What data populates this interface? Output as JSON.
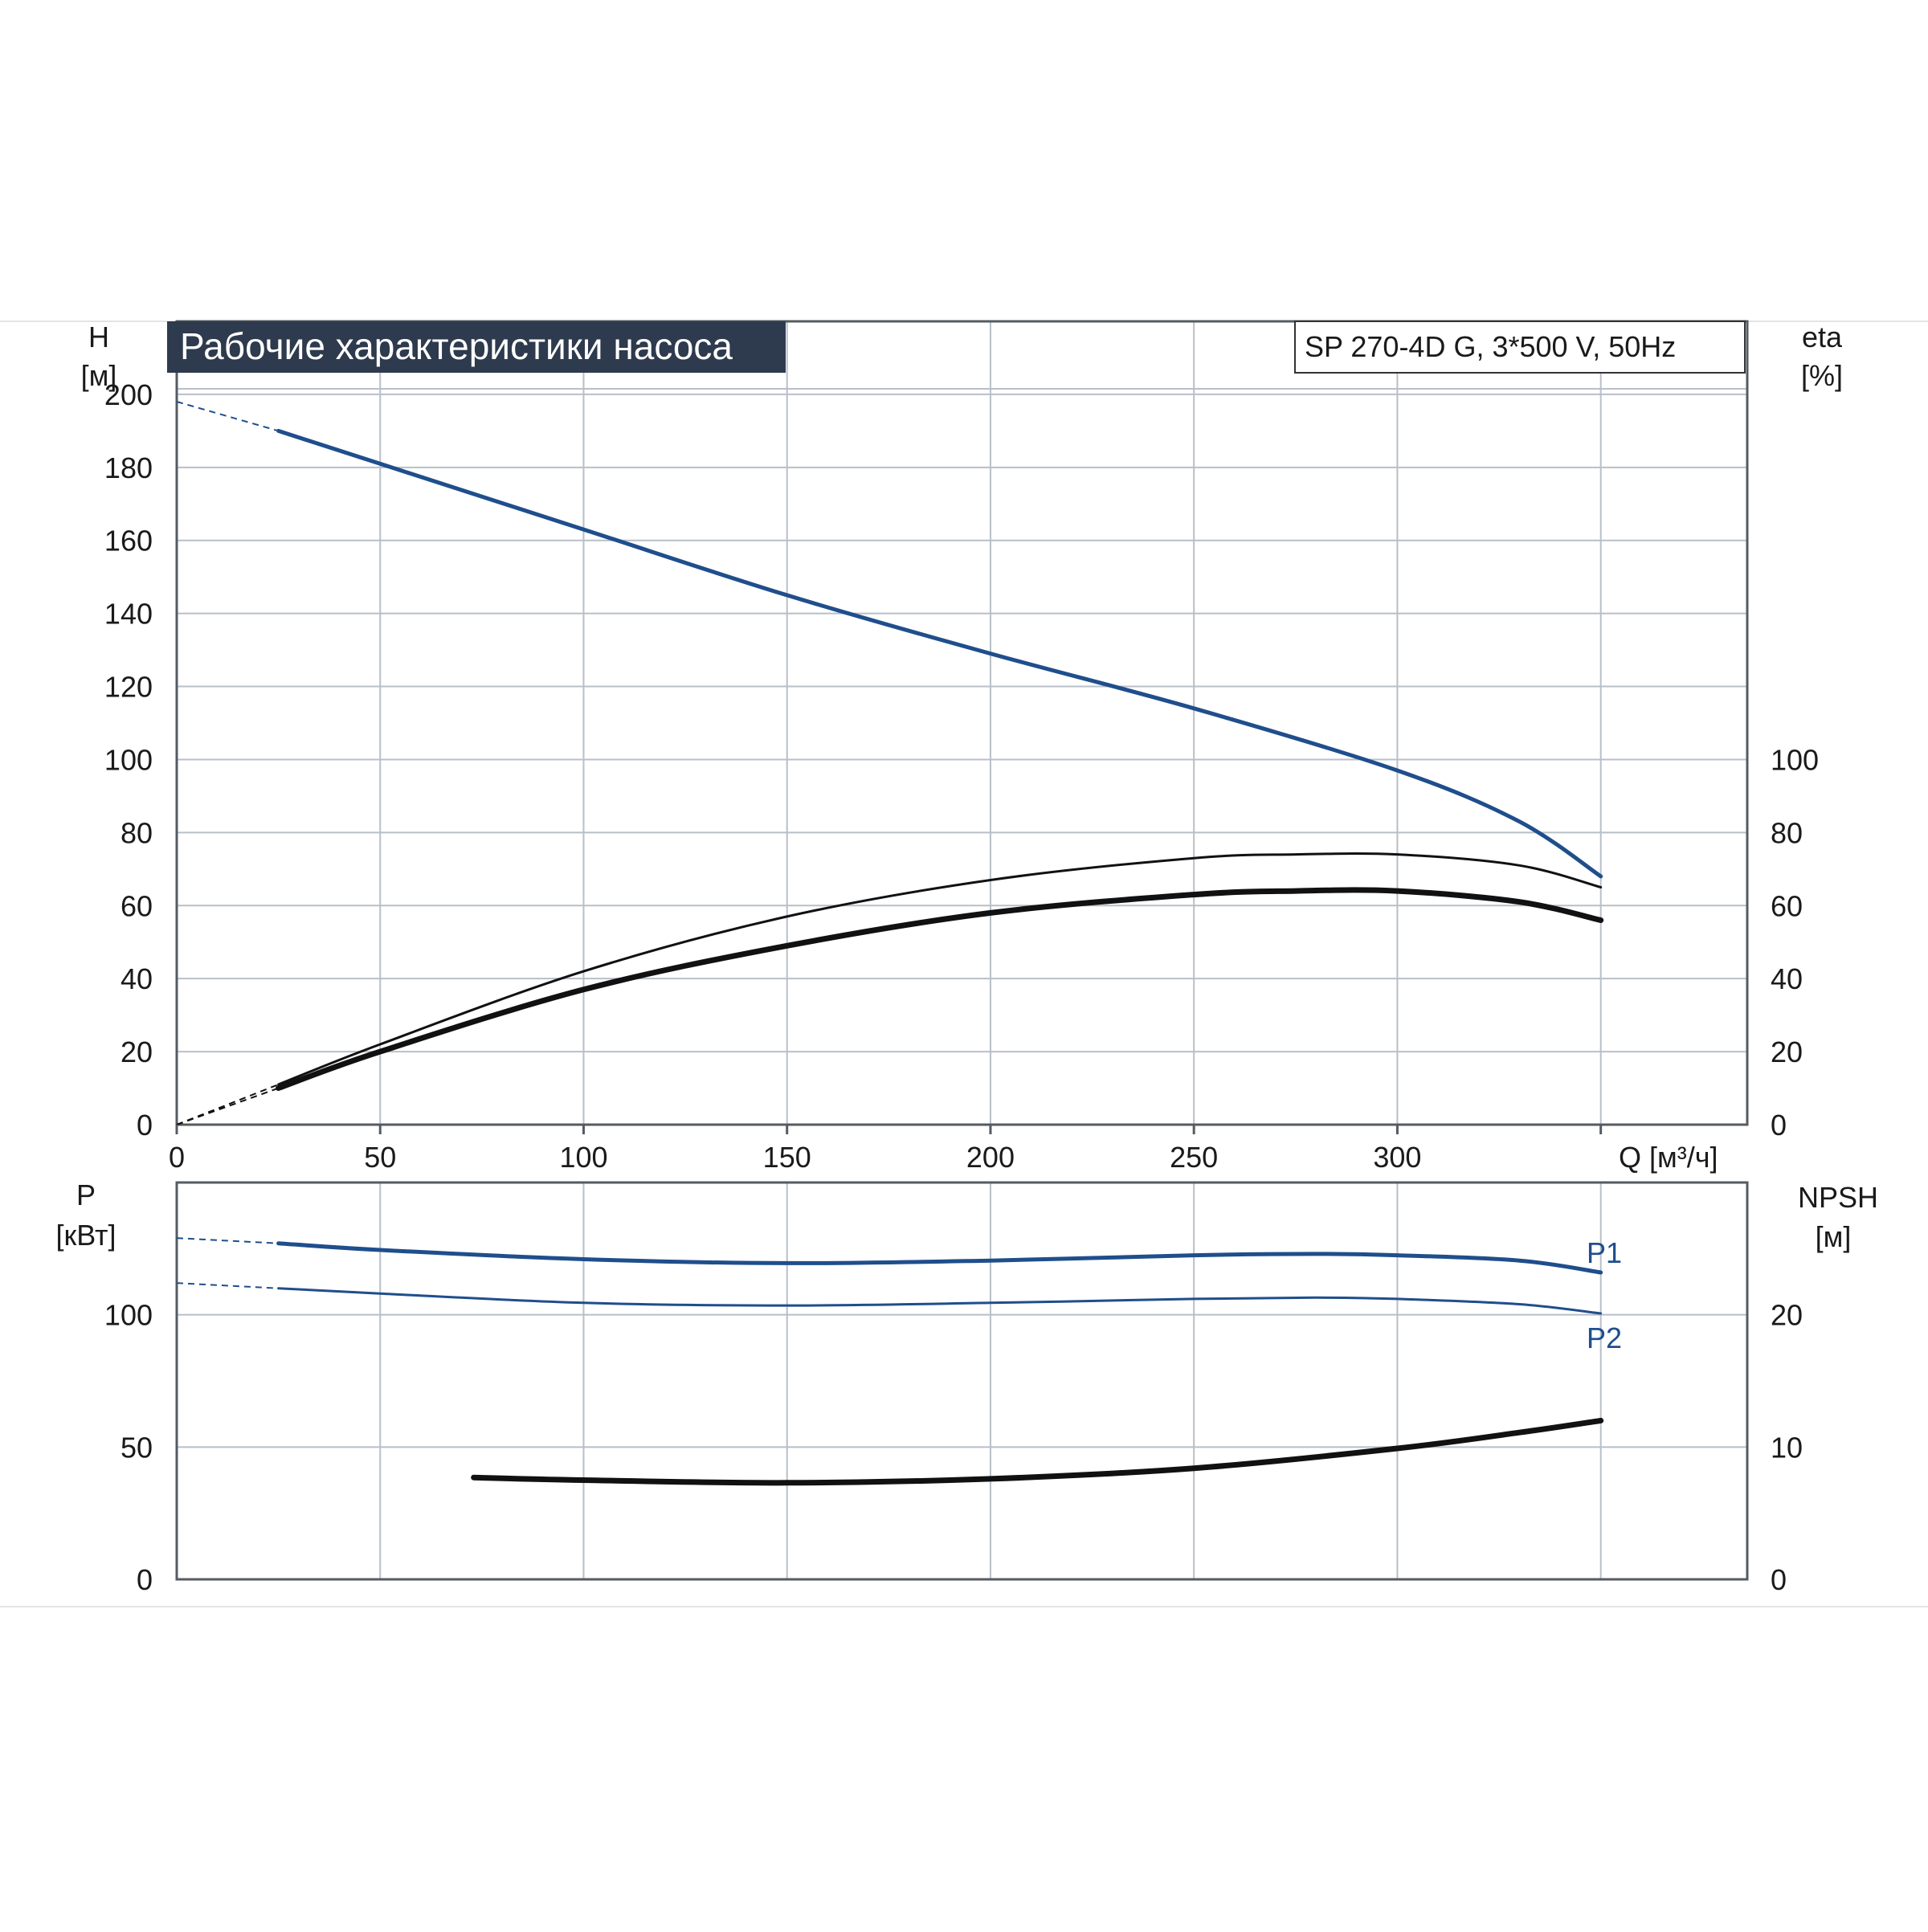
{
  "title": "Рабочие характеристики насоса",
  "model": "SP 270-4D G, 3*500 V, 50Hz",
  "colors": {
    "title_bg": "#2e3a4d",
    "blue": "#1f4e8c",
    "black": "#111111",
    "grid": "#b8bfc8",
    "frame": "#555b62"
  },
  "chart_data": [
    {
      "type": "line",
      "name": "upper",
      "x_axis": {
        "label": "Q [м³/ч]",
        "range": [
          0,
          386
        ],
        "ticks": [
          0,
          50,
          100,
          150,
          200,
          250,
          300
        ],
        "grid_extra": [
          350
        ]
      },
      "y_left": {
        "label_top": "H",
        "label_unit": "[м]",
        "range": [
          0,
          220
        ],
        "ticks": [
          0,
          20,
          40,
          60,
          80,
          100,
          120,
          140,
          160,
          180,
          200
        ]
      },
      "y_right": {
        "label_top": "eta",
        "label_unit": "[%]",
        "range": [
          0,
          220
        ],
        "ticks": [
          0,
          20,
          40,
          60,
          80,
          100
        ]
      },
      "series": [
        {
          "id": "head",
          "color": "blue",
          "width": 5,
          "axis": "left",
          "dashed_x": [
            0,
            25
          ],
          "dashed_y": [
            198,
            190
          ],
          "x": [
            25,
            50,
            100,
            150,
            200,
            250,
            300,
            330,
            350
          ],
          "y": [
            190,
            181,
            163,
            145,
            129,
            114,
            97,
            83,
            68
          ]
        },
        {
          "id": "eta-thin",
          "color": "black",
          "width": 3,
          "axis": "right",
          "dashed_x": [
            0,
            25
          ],
          "dashed_y": [
            0,
            11
          ],
          "x": [
            25,
            50,
            100,
            150,
            200,
            250,
            275,
            300,
            330,
            350
          ],
          "y": [
            11,
            22,
            42,
            57,
            67,
            73,
            74,
            74,
            71,
            65
          ]
        },
        {
          "id": "eta-thick",
          "color": "black",
          "width": 7,
          "axis": "right",
          "dashed_x": [
            0,
            25
          ],
          "dashed_y": [
            0,
            10
          ],
          "x": [
            25,
            50,
            100,
            150,
            200,
            250,
            275,
            300,
            330,
            350
          ],
          "y": [
            10,
            20,
            37,
            49,
            58,
            63,
            64,
            64,
            61,
            56
          ]
        }
      ]
    },
    {
      "type": "line",
      "name": "lower",
      "x_axis": {
        "range": [
          0,
          386
        ],
        "grid": [
          50,
          100,
          150,
          200,
          250,
          300,
          350
        ]
      },
      "y_left": {
        "label_top": "P",
        "label_unit": "[кВт]",
        "range": [
          0,
          150
        ],
        "ticks": [
          0,
          50,
          100
        ]
      },
      "y_right": {
        "label_top": "NPSH",
        "label_unit": "[м]",
        "range": [
          0,
          30
        ],
        "ticks": [
          0,
          10,
          20
        ]
      },
      "series": [
        {
          "id": "P1",
          "label": "P1",
          "color": "blue",
          "width": 5,
          "axis": "left",
          "dashed_x": [
            0,
            25
          ],
          "dashed_y": [
            129,
            127
          ],
          "x": [
            25,
            50,
            100,
            150,
            200,
            250,
            280,
            300,
            330,
            350
          ],
          "y": [
            127,
            124.5,
            121,
            119.5,
            120.5,
            122.5,
            123,
            122.5,
            120.5,
            116
          ]
        },
        {
          "id": "P2",
          "label": "P2",
          "color": "blue",
          "width": 3,
          "axis": "left",
          "dashed_x": [
            0,
            25
          ],
          "dashed_y": [
            112,
            110
          ],
          "x": [
            25,
            50,
            100,
            150,
            200,
            250,
            280,
            300,
            330,
            350
          ],
          "y": [
            110,
            108,
            104.5,
            103.5,
            104.5,
            106,
            106.5,
            106,
            104,
            100.5
          ]
        },
        {
          "id": "NPSH",
          "color": "black",
          "width": 7,
          "axis": "right",
          "x": [
            73,
            100,
            150,
            200,
            250,
            300,
            330,
            350
          ],
          "y": [
            7.7,
            7.5,
            7.3,
            7.6,
            8.4,
            9.9,
            11.1,
            12.0
          ]
        }
      ]
    }
  ]
}
